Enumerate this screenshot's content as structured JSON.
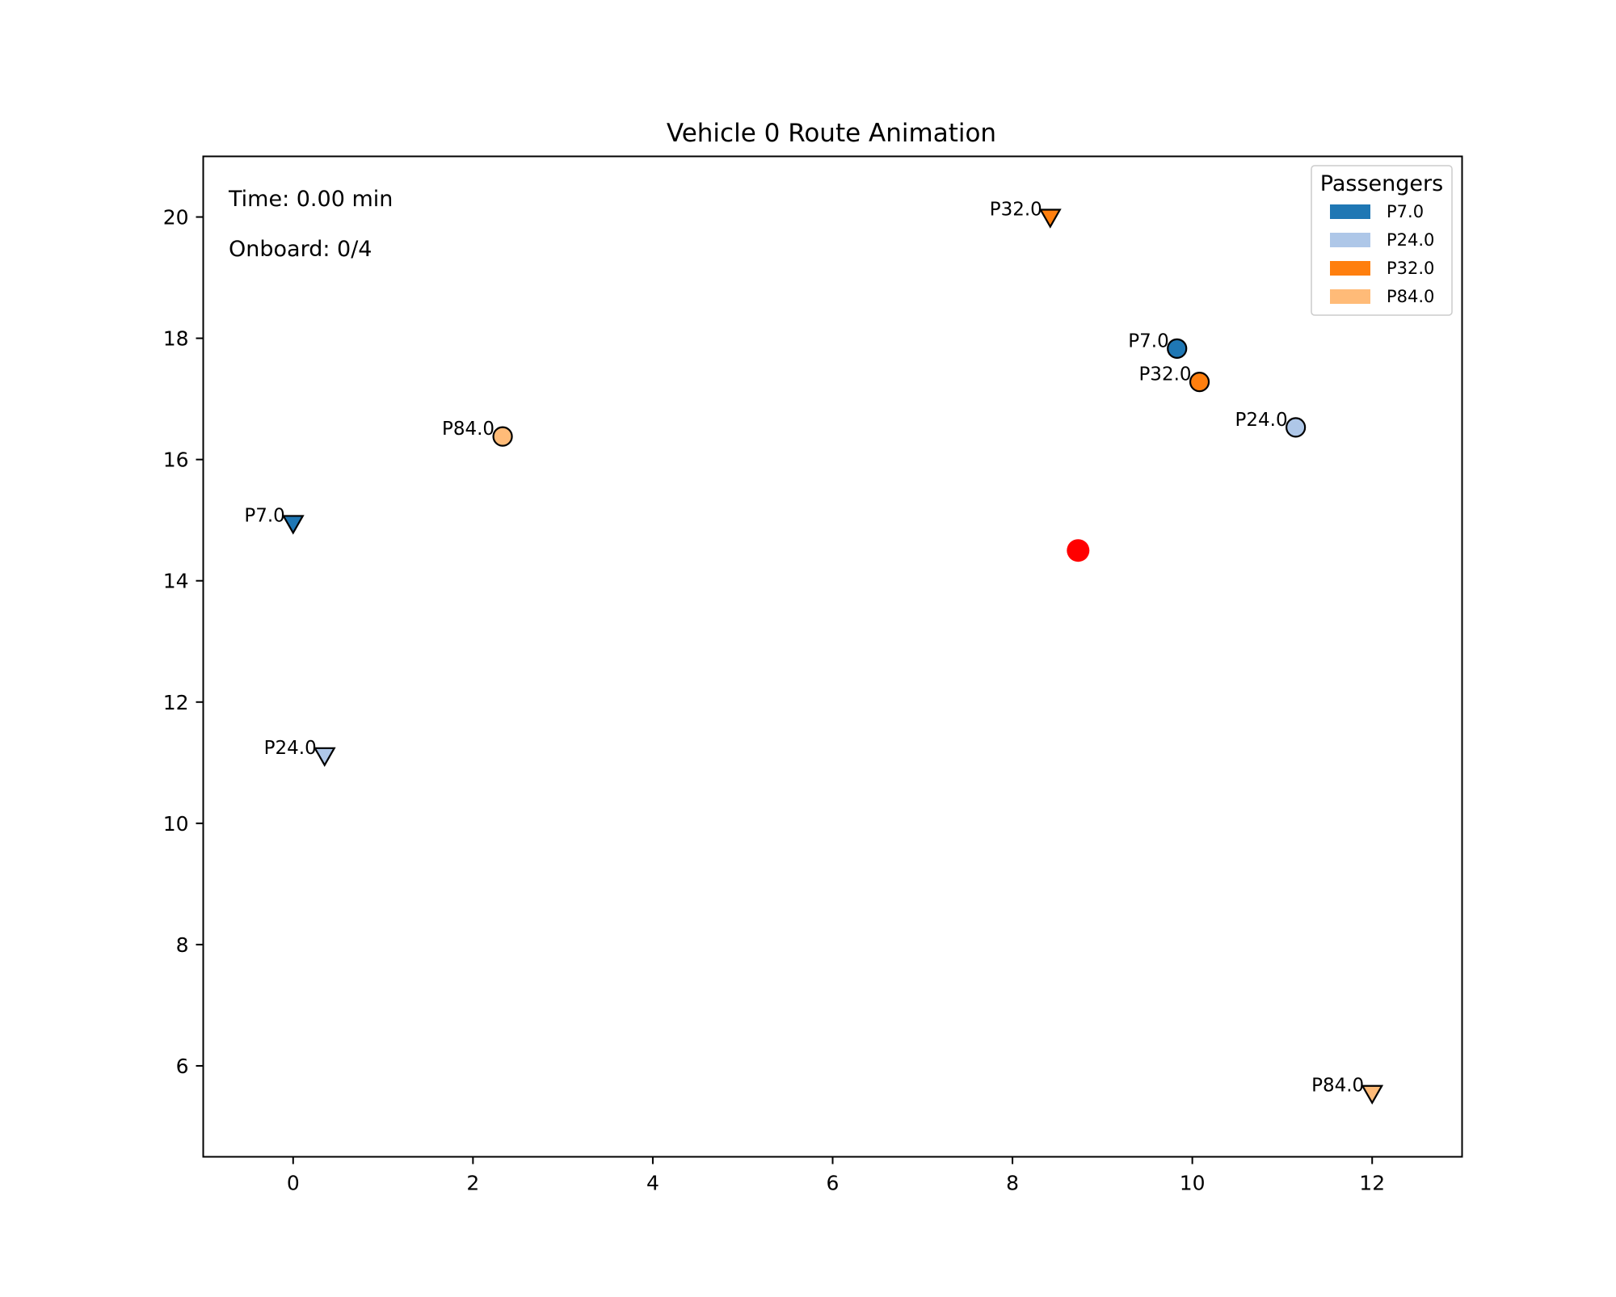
{
  "chart_data": {
    "type": "scatter",
    "title": "Vehicle 0 Route Animation",
    "xlabel": "",
    "ylabel": "",
    "xlim": [
      -1.0,
      13.0
    ],
    "ylim": [
      4.5,
      21.0
    ],
    "xticks": [
      0,
      2,
      4,
      6,
      8,
      10,
      12
    ],
    "yticks": [
      6,
      8,
      10,
      12,
      14,
      16,
      18,
      20
    ],
    "grid": false,
    "legend": {
      "title": "Passengers",
      "placement": "top-right",
      "entries": [
        {
          "label": "P7.0",
          "color": "#1f77b4"
        },
        {
          "label": "P24.0",
          "color": "#aec7e8"
        },
        {
          "label": "P32.0",
          "color": "#ff7f0e"
        },
        {
          "label": "P84.0",
          "color": "#ffbb78"
        }
      ]
    },
    "passengers": [
      {
        "label": "P7.0",
        "color": "#1f77b4",
        "pickup": {
          "x": 9.83,
          "y": 17.83
        },
        "dropoff": {
          "x": 0.0,
          "y": 14.95
        }
      },
      {
        "label": "P24.0",
        "color": "#aec7e8",
        "pickup": {
          "x": 11.15,
          "y": 16.53
        },
        "dropoff": {
          "x": 0.35,
          "y": 11.12
        }
      },
      {
        "label": "P32.0",
        "color": "#ff7f0e",
        "pickup": {
          "x": 10.08,
          "y": 17.28
        },
        "dropoff": {
          "x": 8.42,
          "y": 20.0
        }
      },
      {
        "label": "P84.0",
        "color": "#ffbb78",
        "pickup": {
          "x": 2.33,
          "y": 16.38
        },
        "dropoff": {
          "x": 12.0,
          "y": 5.55
        }
      }
    ],
    "vehicle": {
      "x": 8.73,
      "y": 14.5,
      "color": "#ff0000"
    },
    "annotations": {
      "time": "Time: 0.00 min",
      "onboard": "Onboard: 0/4"
    }
  }
}
